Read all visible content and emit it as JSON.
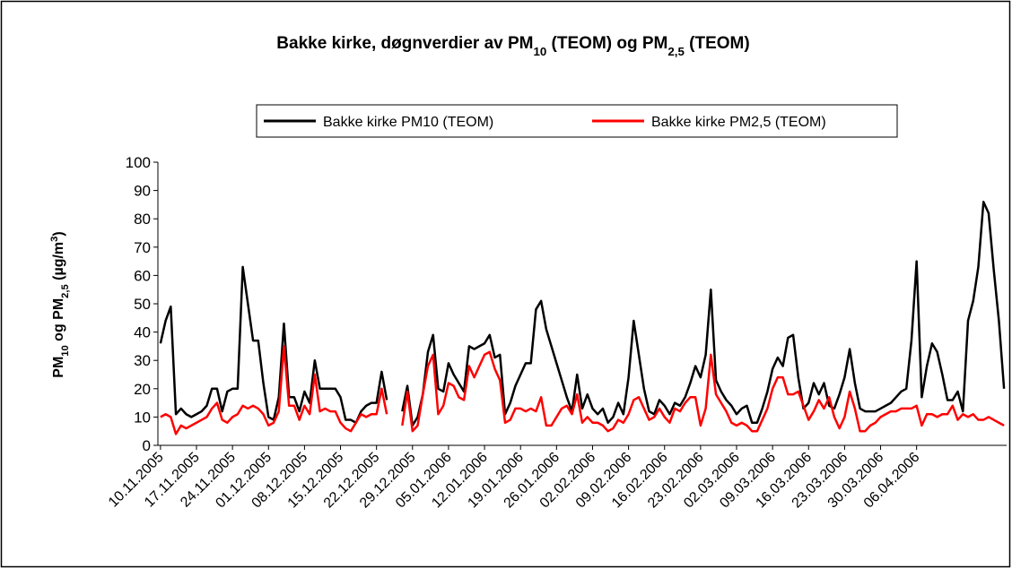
{
  "chart_data": {
    "type": "line",
    "title": [
      "Bakke kirke, døgnverdier av PM",
      "10",
      " (TEOM) og PM",
      "2,5",
      " (TEOM)"
    ],
    "y_label": [
      "PM",
      "10",
      " og PM",
      "2,5",
      " (µg/m",
      "3",
      ")"
    ],
    "categories": [
      "10.11.2005",
      null,
      null,
      null,
      null,
      null,
      null,
      "17.11.2005",
      null,
      null,
      null,
      null,
      null,
      null,
      "24.11.2005",
      null,
      null,
      null,
      null,
      null,
      null,
      "01.12.2005",
      null,
      null,
      null,
      null,
      null,
      null,
      "08.12.2005",
      null,
      null,
      null,
      null,
      null,
      null,
      "15.12.2005",
      null,
      null,
      null,
      null,
      null,
      null,
      "22.12.2005",
      null,
      null,
      null,
      null,
      null,
      null,
      "29.12.2005",
      null,
      null,
      null,
      null,
      null,
      null,
      "05.01.2006",
      null,
      null,
      null,
      null,
      null,
      null,
      "12.01.2006",
      null,
      null,
      null,
      null,
      null,
      null,
      "19.01.2006",
      null,
      null,
      null,
      null,
      null,
      null,
      "26.01.2006",
      null,
      null,
      null,
      null,
      null,
      null,
      "02.02.2006",
      null,
      null,
      null,
      null,
      null,
      null,
      "09.02.2006",
      null,
      null,
      null,
      null,
      null,
      null,
      "16.02.2006",
      null,
      null,
      null,
      null,
      null,
      null,
      "23.02.2006",
      null,
      null,
      null,
      null,
      null,
      null,
      "02.03.2006",
      null,
      null,
      null,
      null,
      null,
      null,
      "09.03.2006",
      null,
      null,
      null,
      null,
      null,
      null,
      "16.03.2006",
      null,
      null,
      null,
      null,
      null,
      null,
      "23.03.2006",
      null,
      null,
      null,
      null,
      null,
      null,
      "30.03.2006",
      null,
      null,
      null,
      null,
      null,
      null,
      "06.04.2006",
      null,
      null,
      null,
      null,
      null,
      null,
      null,
      null,
      null,
      null,
      null,
      null,
      null,
      null,
      null,
      null,
      null
    ],
    "series": [
      {
        "name": "Bakke kirke PM10 (TEOM)",
        "color": "#000000",
        "values": [
          36,
          44,
          49,
          11,
          13,
          11,
          10,
          11,
          12,
          14,
          20,
          20,
          12,
          19,
          20,
          20,
          63,
          50,
          37,
          37,
          22,
          10,
          9,
          17,
          43,
          17,
          17,
          12,
          19,
          15,
          30,
          20,
          20,
          20,
          20,
          17,
          9,
          9,
          8,
          12,
          14,
          15,
          15,
          26,
          16,
          null,
          null,
          12,
          21,
          7,
          10,
          18,
          33,
          39,
          20,
          19,
          29,
          25,
          22,
          19,
          35,
          34,
          35,
          36,
          39,
          31,
          32,
          11,
          15,
          21,
          25,
          29,
          29,
          48,
          51,
          41,
          35,
          29,
          23,
          17,
          12,
          25,
          13,
          18,
          13,
          11,
          13,
          8,
          10,
          15,
          11,
          24,
          44,
          32,
          20,
          12,
          11,
          16,
          14,
          11,
          15,
          14,
          17,
          22,
          28,
          24,
          32,
          55,
          23,
          19,
          16,
          14,
          11,
          13,
          14,
          8,
          8,
          13,
          19,
          27,
          31,
          28,
          38,
          39,
          24,
          13,
          15,
          22,
          18,
          22,
          14,
          13,
          18,
          24,
          34,
          22,
          13,
          12,
          12,
          12,
          13,
          14,
          15,
          17,
          19,
          20,
          37,
          65,
          17,
          28,
          36,
          33,
          25,
          16,
          16,
          19,
          12,
          44,
          51,
          63,
          86,
          82,
          62,
          44,
          20
        ]
      },
      {
        "name": "Bakke kirke PM2,5 (TEOM)",
        "color": "#ff0000",
        "values": [
          10,
          11,
          10,
          4,
          7,
          6,
          7,
          8,
          9,
          10,
          13,
          15,
          9,
          8,
          10,
          11,
          14,
          13,
          14,
          13,
          11,
          7,
          8,
          12,
          35,
          14,
          14,
          9,
          14,
          11,
          25,
          12,
          13,
          12,
          12,
          8,
          6,
          5,
          8,
          11,
          10,
          11,
          11,
          20,
          11,
          null,
          null,
          7,
          19,
          5,
          7,
          18,
          28,
          32,
          11,
          14,
          22,
          21,
          17,
          16,
          28,
          24,
          28,
          32,
          33,
          27,
          23,
          8,
          9,
          13,
          13,
          12,
          13,
          12,
          17,
          7,
          7,
          10,
          13,
          14,
          11,
          18,
          8,
          10,
          8,
          8,
          7,
          5,
          6,
          9,
          8,
          11,
          16,
          17,
          13,
          9,
          10,
          13,
          10,
          8,
          13,
          12,
          15,
          17,
          17,
          7,
          13,
          32,
          18,
          15,
          12,
          8,
          7,
          8,
          7,
          5,
          5,
          9,
          13,
          20,
          24,
          24,
          18,
          18,
          19,
          14,
          9,
          12,
          16,
          13,
          17,
          10,
          6,
          10,
          19,
          13,
          5,
          5,
          7,
          8,
          10,
          11,
          12,
          12,
          13,
          13,
          13,
          14,
          7,
          11,
          11,
          10,
          11,
          11,
          14,
          9,
          11,
          10,
          11,
          9,
          9,
          10,
          9,
          8,
          7
        ]
      }
    ],
    "ylim": [
      0,
      100
    ],
    "yticks": [
      0,
      10,
      20,
      30,
      40,
      50,
      60,
      70,
      80,
      90,
      100
    ],
    "grid": false,
    "legend": "top"
  }
}
